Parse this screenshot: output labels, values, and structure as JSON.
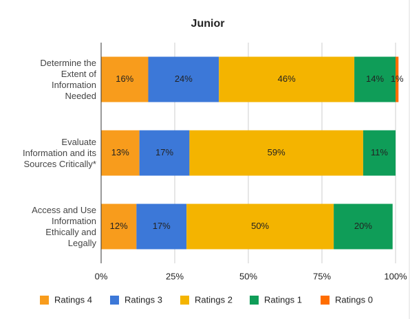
{
  "chart_data": {
    "type": "stacked_bar_horizontal",
    "title": "Junior",
    "categories": [
      "Determine the Extent of Information Needed",
      "Evaluate Information and its Sources Critically*",
      "Access and Use Information Ethically and Legally"
    ],
    "series": [
      {
        "name": "Ratings 4",
        "color": "#f89c1c",
        "values": [
          16,
          13,
          12
        ],
        "value_labels": [
          "16%",
          "13%",
          "12%"
        ]
      },
      {
        "name": "Ratings 3",
        "color": "#3c78d8",
        "values": [
          24,
          17,
          17
        ],
        "value_labels": [
          "24%",
          "17%",
          "17%"
        ]
      },
      {
        "name": "Ratings 2",
        "color": "#f4b400",
        "values": [
          46,
          59,
          50
        ],
        "value_labels": [
          "46%",
          "59%",
          "50%"
        ]
      },
      {
        "name": "Ratings 1",
        "color": "#0f9d58",
        "values": [
          14,
          11,
          20
        ],
        "value_labels": [
          "14%",
          "11%",
          "20%"
        ]
      },
      {
        "name": "Ratings 0",
        "color": "#ff6d00",
        "values": [
          1,
          0,
          0
        ],
        "value_labels": [
          "1%",
          null,
          null
        ]
      }
    ],
    "xlim": [
      0,
      100
    ],
    "xticks": [
      {
        "value": 0,
        "label": "0%"
      },
      {
        "value": 25,
        "label": "25%"
      },
      {
        "value": 50,
        "label": "50%"
      },
      {
        "value": 75,
        "label": "75%"
      },
      {
        "value": 100,
        "label": "100%"
      }
    ],
    "grid": true,
    "legend": "bottom"
  }
}
